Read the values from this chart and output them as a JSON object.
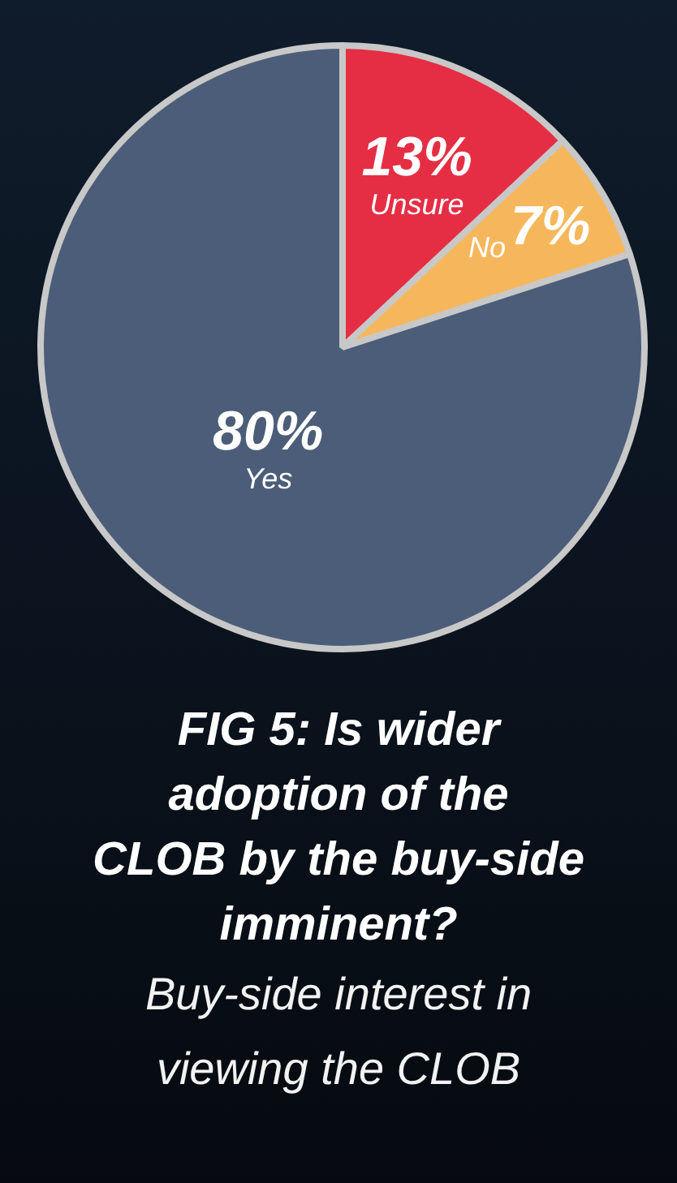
{
  "chart_data": {
    "type": "pie",
    "title": "FIG 5: Is wider\nadoption of the\nCLOB by the buy-side\nimminent?",
    "subtitle": "Buy-side interest in\nviewing the CLOB",
    "categories": [
      "Unsure",
      "No",
      "Yes"
    ],
    "values": [
      13,
      7,
      80
    ],
    "colors": [
      "#e52e44",
      "#f6b75c",
      "#4b5d78"
    ],
    "value_labels": [
      "13%",
      "7%",
      "80%"
    ]
  }
}
